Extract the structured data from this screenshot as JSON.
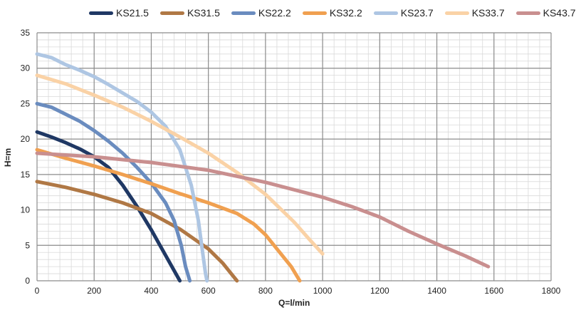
{
  "chart_data": {
    "type": "line",
    "xlabel": "Q=l/min",
    "ylabel": "H=m",
    "xlim": [
      0,
      1800
    ],
    "ylim": [
      0,
      35
    ],
    "x_major_ticks": [
      0,
      200,
      400,
      600,
      800,
      1000,
      1200,
      1400,
      1600,
      1800
    ],
    "y_major_ticks": [
      0,
      5,
      10,
      15,
      20,
      25,
      30,
      35
    ],
    "grid": "major and minor",
    "legend_position": "top",
    "series": [
      {
        "name": "KS21.5",
        "color": "#1f3864",
        "points": [
          [
            0,
            21
          ],
          [
            50,
            20.3
          ],
          [
            100,
            19.5
          ],
          [
            150,
            18.6
          ],
          [
            200,
            17.5
          ],
          [
            250,
            16
          ],
          [
            300,
            13.5
          ],
          [
            350,
            10.5
          ],
          [
            400,
            7.2
          ],
          [
            450,
            3.6
          ],
          [
            500,
            0
          ]
        ]
      },
      {
        "name": "KS31.5",
        "color": "#b07845",
        "points": [
          [
            0,
            14
          ],
          [
            100,
            13.2
          ],
          [
            200,
            12.2
          ],
          [
            300,
            11
          ],
          [
            400,
            9.5
          ],
          [
            500,
            7.3
          ],
          [
            600,
            4.5
          ],
          [
            650,
            2.5
          ],
          [
            700,
            0
          ]
        ]
      },
      {
        "name": "KS22.2",
        "color": "#6a8cbf",
        "points": [
          [
            0,
            25
          ],
          [
            50,
            24.5
          ],
          [
            100,
            23.5
          ],
          [
            150,
            22.5
          ],
          [
            200,
            21.2
          ],
          [
            250,
            19.7
          ],
          [
            300,
            18
          ],
          [
            350,
            16
          ],
          [
            400,
            13.8
          ],
          [
            450,
            11
          ],
          [
            480,
            8.5
          ],
          [
            505,
            5
          ],
          [
            520,
            2
          ],
          [
            535,
            0
          ]
        ]
      },
      {
        "name": "KS32.2",
        "color": "#f0a050",
        "points": [
          [
            0,
            18.5
          ],
          [
            100,
            17.3
          ],
          [
            200,
            16.2
          ],
          [
            300,
            15
          ],
          [
            400,
            13.7
          ],
          [
            500,
            12.3
          ],
          [
            600,
            11
          ],
          [
            700,
            9.5
          ],
          [
            760,
            8
          ],
          [
            800,
            6.5
          ],
          [
            850,
            4
          ],
          [
            890,
            2
          ],
          [
            920,
            0
          ]
        ]
      },
      {
        "name": "KS23.7",
        "color": "#aec6e3",
        "points": [
          [
            0,
            32
          ],
          [
            50,
            31.5
          ],
          [
            100,
            30.5
          ],
          [
            150,
            29.7
          ],
          [
            200,
            28.8
          ],
          [
            250,
            27.7
          ],
          [
            300,
            26.5
          ],
          [
            350,
            25.3
          ],
          [
            400,
            23.8
          ],
          [
            450,
            21.8
          ],
          [
            500,
            18.5
          ],
          [
            540,
            13.5
          ],
          [
            565,
            8.5
          ],
          [
            580,
            4
          ],
          [
            590,
            1
          ],
          [
            595,
            0
          ]
        ]
      },
      {
        "name": "KS33.7",
        "color": "#fad2a6",
        "points": [
          [
            0,
            29
          ],
          [
            100,
            27.8
          ],
          [
            200,
            26.2
          ],
          [
            300,
            24.5
          ],
          [
            400,
            22.5
          ],
          [
            500,
            20.3
          ],
          [
            600,
            18
          ],
          [
            700,
            15.3
          ],
          [
            800,
            12.2
          ],
          [
            900,
            8.3
          ],
          [
            950,
            6
          ],
          [
            1000,
            3.8
          ]
        ]
      },
      {
        "name": "KS43.7",
        "color": "#c98f8f",
        "points": [
          [
            0,
            18
          ],
          [
            200,
            17.5
          ],
          [
            400,
            16.7
          ],
          [
            600,
            15.6
          ],
          [
            800,
            13.9
          ],
          [
            1000,
            11.8
          ],
          [
            1100,
            10.5
          ],
          [
            1200,
            9
          ],
          [
            1300,
            7
          ],
          [
            1400,
            5.2
          ],
          [
            1500,
            3.5
          ],
          [
            1580,
            2
          ]
        ]
      }
    ]
  }
}
